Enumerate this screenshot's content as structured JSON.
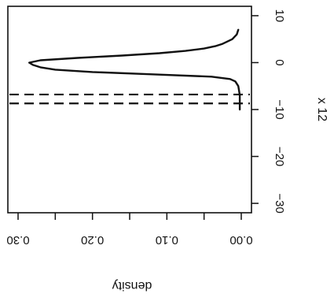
{
  "chart_data": {
    "type": "line",
    "orientation": "rotated",
    "title": "",
    "xlabel": "x 12",
    "ylabel": "density",
    "xlim": [
      -32,
      12
    ],
    "ylim": [
      0.0,
      0.3
    ],
    "x_ticks": [
      {
        "value": -30,
        "label": "−30"
      },
      {
        "value": -20,
        "label": "−20"
      },
      {
        "value": -10,
        "label": "−10"
      },
      {
        "value": 0,
        "label": "0"
      },
      {
        "value": 10,
        "label": "10"
      }
    ],
    "y_ticks": [
      {
        "value": 0.0,
        "label": "0.00"
      },
      {
        "value": 0.05,
        "label": ""
      },
      {
        "value": 0.1,
        "label": "0.10"
      },
      {
        "value": 0.15,
        "label": ""
      },
      {
        "value": 0.2,
        "label": "0.20"
      },
      {
        "value": 0.25,
        "label": ""
      },
      {
        "value": 0.3,
        "label": "0.30"
      }
    ],
    "series": [
      {
        "style": "solid",
        "x": [
          -10.0,
          -9.0,
          -8.0,
          -7.0,
          -6.0,
          -5.0,
          -4.0,
          -3.5,
          -3.0,
          -2.5,
          -2.0,
          -1.5,
          -1.0,
          -0.5,
          0.0,
          0.5,
          1.0,
          1.5,
          2.0,
          2.5,
          3.0,
          3.5,
          4.0,
          5.0,
          6.0,
          7.0
        ],
        "y": [
          0.002,
          0.002,
          0.002,
          0.002,
          0.003,
          0.004,
          0.008,
          0.015,
          0.04,
          0.12,
          0.2,
          0.25,
          0.27,
          0.28,
          0.285,
          0.27,
          0.22,
          0.16,
          0.11,
          0.075,
          0.05,
          0.035,
          0.025,
          0.012,
          0.006,
          0.004
        ]
      }
    ],
    "reference_lines": [
      {
        "axis": "x",
        "value": -6.8,
        "style": "dashed"
      },
      {
        "axis": "x",
        "value": -8.7,
        "style": "dashed"
      }
    ],
    "grid": false,
    "legend": "none"
  }
}
